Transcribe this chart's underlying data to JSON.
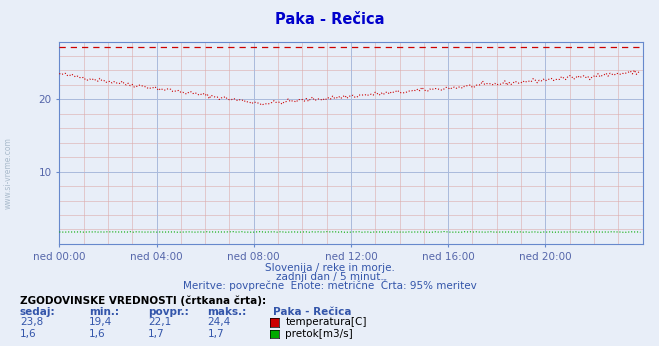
{
  "title": "Paka - Rečica",
  "title_color": "#0000cc",
  "bg_color": "#e8eef8",
  "plot_bg_color": "#e8eef8",
  "x_tick_labels": [
    "ned 00:00",
    "ned 04:00",
    "ned 08:00",
    "ned 12:00",
    "ned 16:00",
    "ned 20:00"
  ],
  "x_tick_positions": [
    0,
    48,
    96,
    144,
    192,
    240
  ],
  "y_ticks": [
    10,
    20
  ],
  "ylim": [
    0,
    28
  ],
  "xlim": [
    0,
    288
  ],
  "temp_color": "#cc0000",
  "flow_color": "#00aa00",
  "dashed_color": "#cc0000",
  "dashed_value": 27.2,
  "footer_line1": "Slovenija / reke in morje.",
  "footer_line2": "zadnji dan / 5 minut.",
  "footer_line3": "Meritve: povprečne  Enote: metrične  Črta: 95% meritev",
  "stats_label": "ZGODOVINSKE VREDNOSTI (črtkana črta):",
  "stats_headers": [
    "sedaj:",
    "min.:",
    "povpr.:",
    "maks.:"
  ],
  "stats_temp": [
    "23,8",
    "19,4",
    "22,1",
    "24,4"
  ],
  "stats_flow": [
    "1,6",
    "1,6",
    "1,7",
    "1,7"
  ],
  "legend_temp": "temperatura[C]",
  "legend_flow": "pretok[m3/s]",
  "station_name": "Paka - Rečica",
  "spine_color": "#6688cc",
  "tick_color": "#5566aa",
  "grid_major_color": "#aabbdd",
  "grid_minor_color": "#ccaabb",
  "watermark_color": "#aabbcc"
}
